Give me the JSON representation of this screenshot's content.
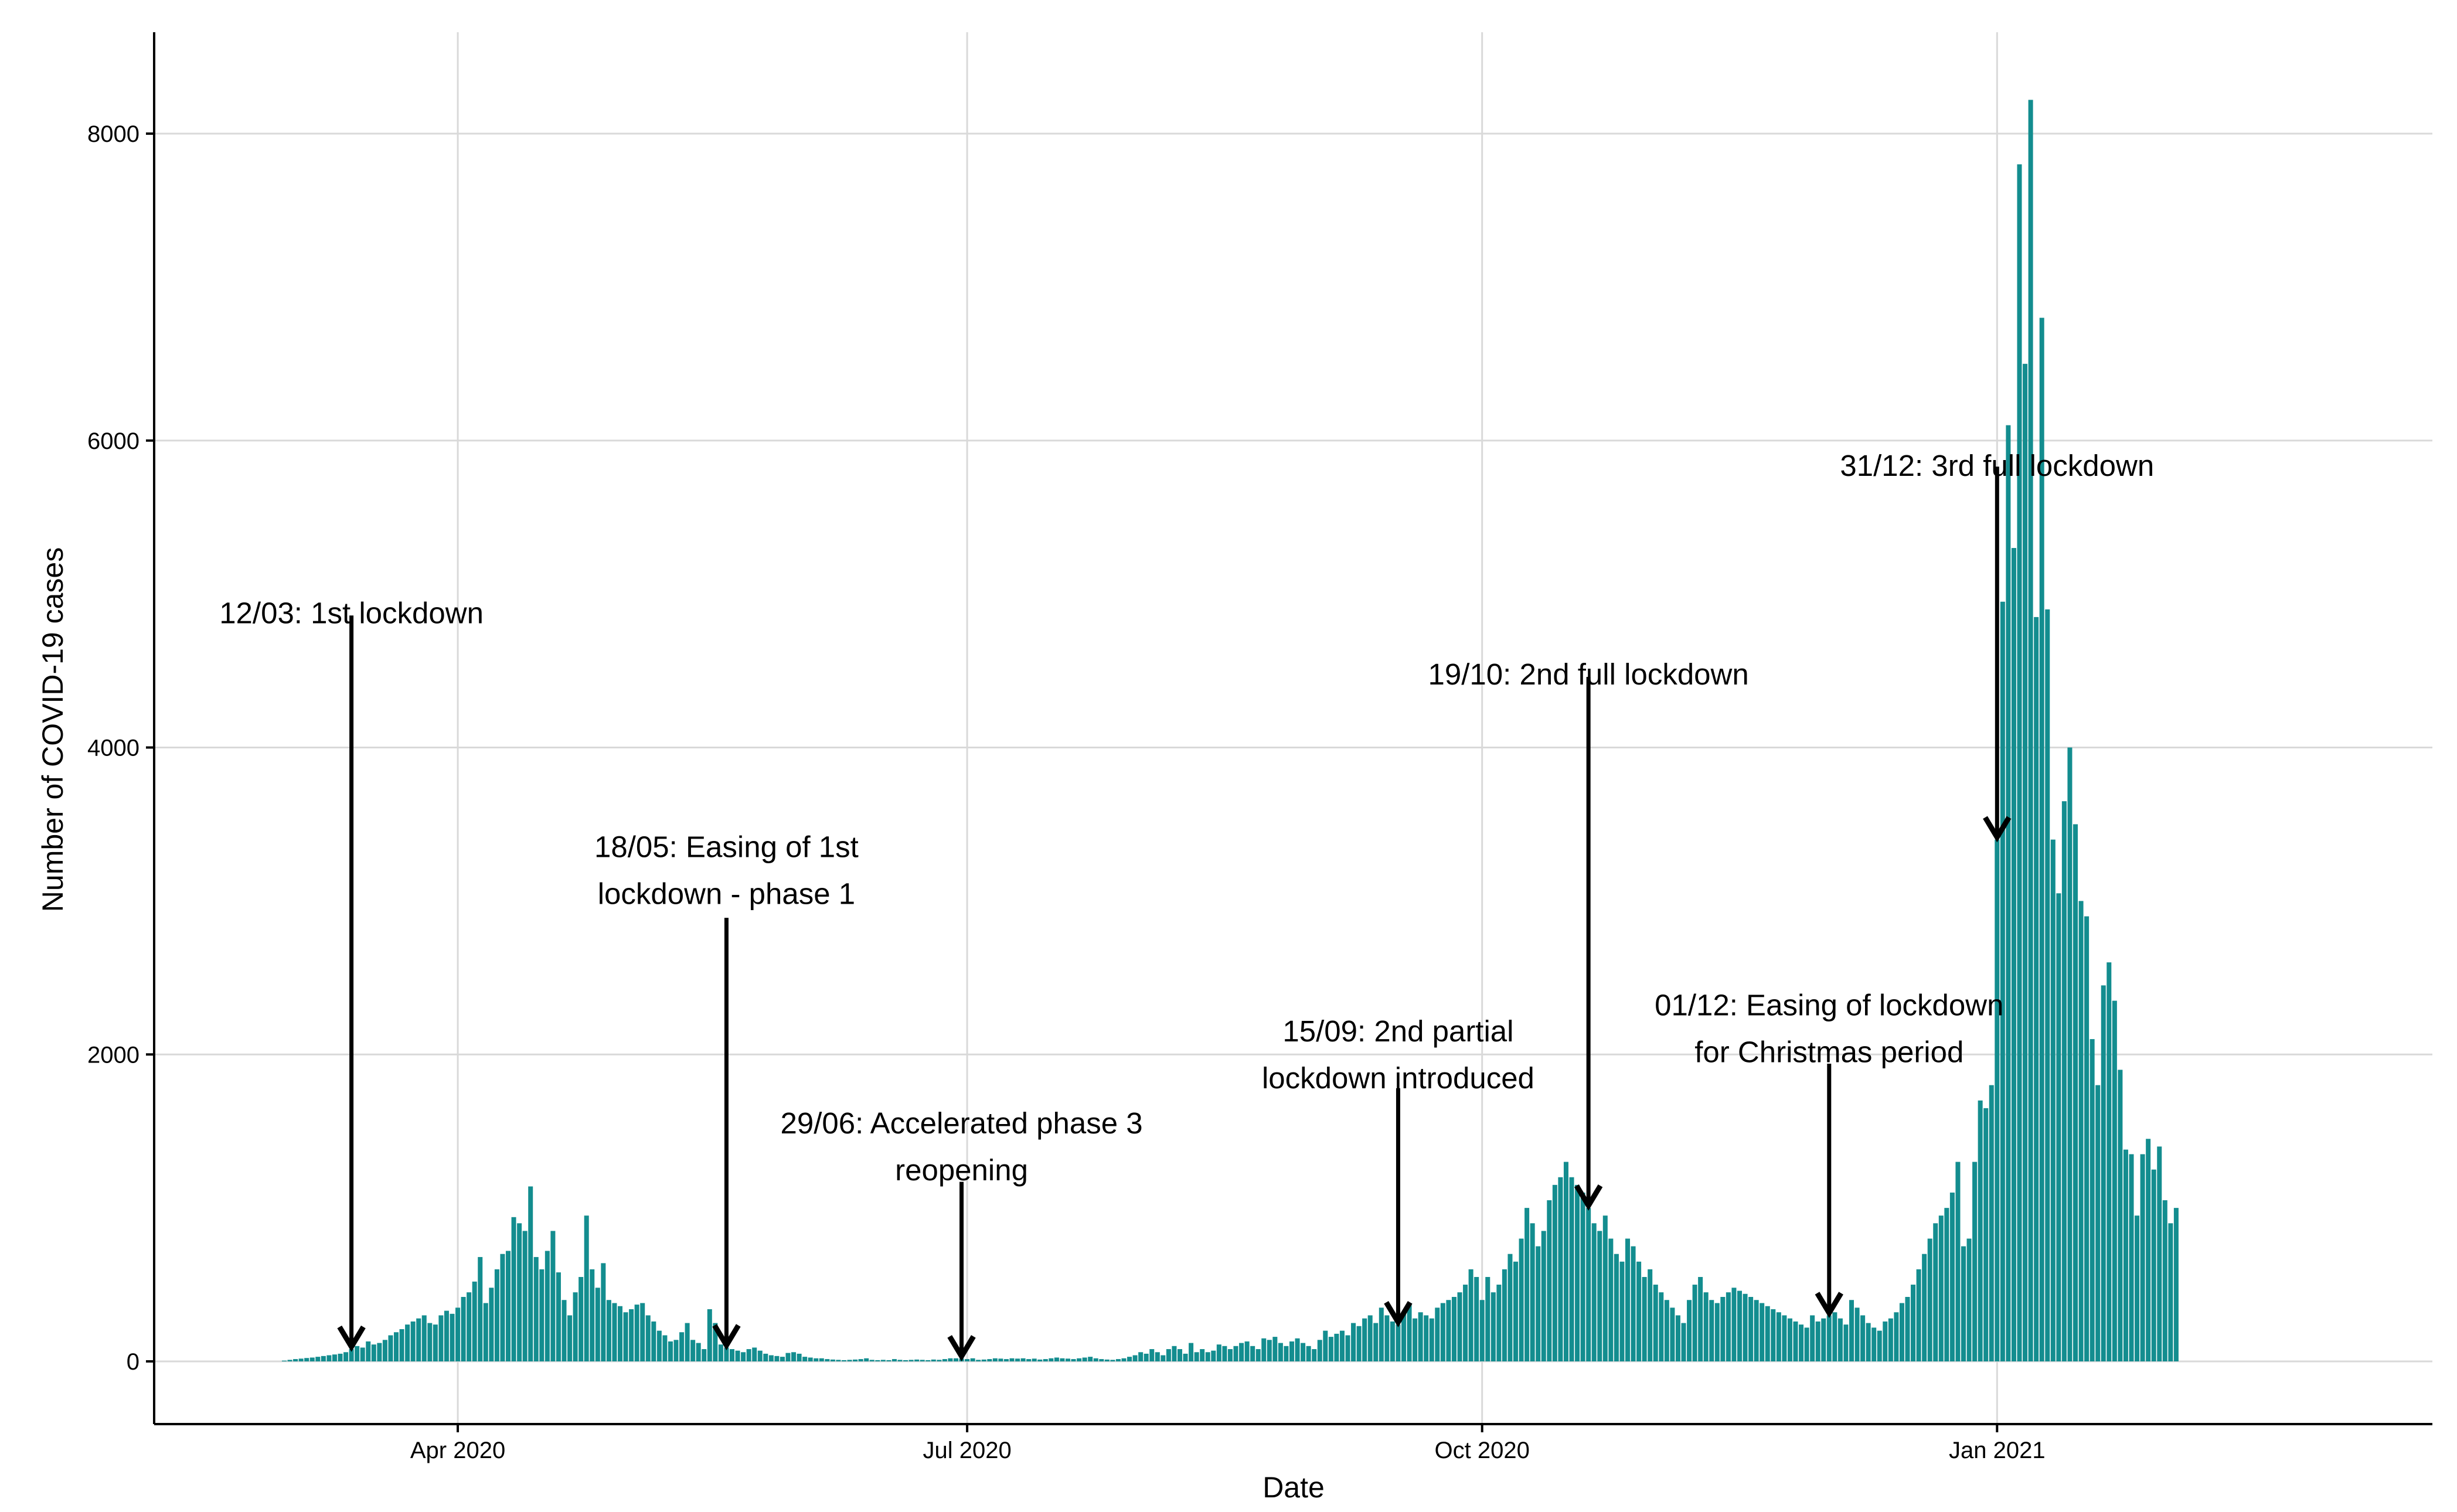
{
  "chart_data": {
    "type": "bar",
    "title": "",
    "xlabel": "Date",
    "ylabel": "Number of COVID-19 cases",
    "bar_color": "#138d8f",
    "grid": true,
    "x_start": "2020-02-29",
    "x_end_day": 325,
    "ylim": [
      -350,
      8650
    ],
    "y_ticks": [
      0,
      2000,
      4000,
      6000,
      8000
    ],
    "y_tick_labels": [
      "0",
      "2000",
      "4000",
      "6000",
      "8000"
    ],
    "x_ticks": [
      {
        "label": "Apr 2020",
        "day": 31
      },
      {
        "label": "Jul 2020",
        "day": 122
      },
      {
        "label": "Oct 2020",
        "day": 214
      },
      {
        "label": "Jan 2021",
        "day": 306
      }
    ],
    "values": [
      5,
      10,
      15,
      18,
      22,
      25,
      30,
      35,
      40,
      45,
      50,
      60,
      80,
      100,
      90,
      130,
      110,
      120,
      140,
      170,
      190,
      210,
      240,
      260,
      280,
      300,
      250,
      240,
      300,
      330,
      310,
      350,
      420,
      450,
      520,
      680,
      380,
      480,
      600,
      700,
      720,
      940,
      900,
      850,
      1140,
      680,
      600,
      720,
      850,
      580,
      400,
      300,
      450,
      550,
      950,
      600,
      480,
      640,
      400,
      380,
      360,
      320,
      340,
      370,
      380,
      300,
      260,
      200,
      170,
      130,
      140,
      190,
      250,
      140,
      120,
      80,
      340,
      250,
      110,
      90,
      80,
      70,
      60,
      80,
      90,
      70,
      50,
      40,
      35,
      30,
      55,
      60,
      50,
      30,
      25,
      20,
      20,
      15,
      12,
      10,
      8,
      10,
      12,
      15,
      20,
      10,
      8,
      10,
      8,
      15,
      10,
      8,
      10,
      12,
      10,
      8,
      12,
      10,
      15,
      20,
      20,
      18,
      15,
      20,
      10,
      12,
      15,
      20,
      18,
      15,
      20,
      18,
      20,
      15,
      18,
      12,
      15,
      20,
      25,
      20,
      18,
      15,
      20,
      25,
      30,
      20,
      15,
      12,
      10,
      15,
      20,
      30,
      40,
      60,
      50,
      80,
      60,
      40,
      80,
      100,
      80,
      50,
      120,
      60,
      80,
      60,
      70,
      110,
      100,
      80,
      100,
      120,
      130,
      100,
      80,
      150,
      140,
      160,
      120,
      100,
      130,
      150,
      120,
      100,
      80,
      140,
      200,
      160,
      180,
      200,
      170,
      250,
      230,
      280,
      300,
      250,
      350,
      300,
      260,
      240,
      320,
      380,
      280,
      320,
      300,
      280,
      350,
      380,
      400,
      420,
      450,
      500,
      600,
      550,
      400,
      550,
      450,
      500,
      600,
      700,
      650,
      800,
      1000,
      900,
      750,
      850,
      1050,
      1150,
      1200,
      1300,
      1200,
      1150,
      1100,
      1000,
      900,
      850,
      950,
      800,
      700,
      650,
      800,
      750,
      650,
      550,
      600,
      500,
      450,
      400,
      350,
      300,
      250,
      400,
      500,
      550,
      450,
      400,
      380,
      420,
      450,
      480,
      460,
      440,
      420,
      400,
      380,
      360,
      340,
      320,
      300,
      280,
      260,
      240,
      220,
      300,
      260,
      280,
      300,
      320,
      280,
      240,
      400,
      350,
      300,
      250,
      220,
      200,
      260,
      280,
      320,
      380,
      420,
      500,
      600,
      700,
      800,
      900,
      950,
      1000,
      1100,
      1300,
      750,
      800,
      1300,
      1700,
      1650,
      1800,
      3400,
      4950,
      6100,
      5300,
      7800,
      6500,
      8220,
      4850,
      6800,
      4900,
      3400,
      3050,
      3650,
      4000,
      3500,
      3000,
      2900,
      2100,
      1800,
      2450,
      2600,
      2350,
      1900,
      1380,
      1350,
      950,
      1350,
      1450,
      1250,
      1400,
      1050,
      900,
      1000
    ],
    "annotations": [
      {
        "lines": [
          "12/03: 1st lockdown"
        ],
        "day": 12,
        "text_top": 4810,
        "arrow_top": 4860
      },
      {
        "lines": [
          "18/05: Easing of 1st",
          "lockdown - phase 1"
        ],
        "day": 79,
        "text_top": 2980,
        "arrow_top": 2890
      },
      {
        "lines": [
          "29/06: Accelerated phase 3",
          "reopening"
        ],
        "day": 121,
        "text_top": 1180,
        "arrow_top": 1170
      },
      {
        "lines": [
          "15/09: 2nd partial",
          "lockdown introduced"
        ],
        "day": 199,
        "text_top": 1780,
        "arrow_top": 1780
      },
      {
        "lines": [
          "19/10: 2nd full lockdown"
        ],
        "day": 233,
        "text_top": 4410,
        "arrow_top": 4460
      },
      {
        "lines": [
          "01/12: Easing of lockdown",
          "for Christmas period"
        ],
        "day": 276,
        "text_top": 1950,
        "arrow_top": 1940
      },
      {
        "lines": [
          "31/12: 3rd full lockdown"
        ],
        "day": 306,
        "text_top": 5770,
        "arrow_top": 5830
      }
    ]
  }
}
